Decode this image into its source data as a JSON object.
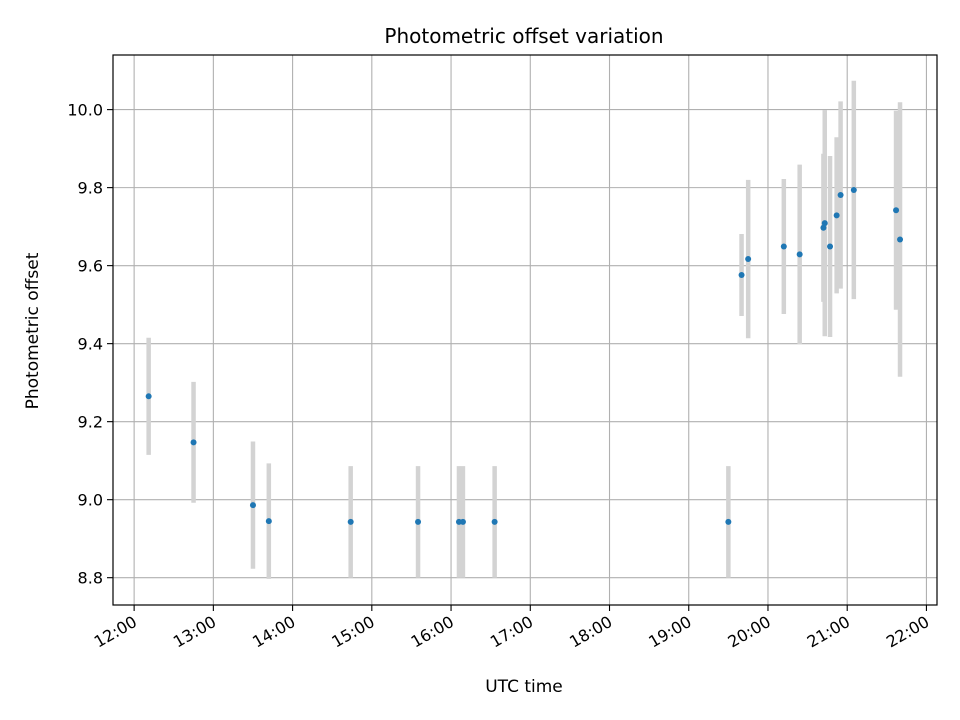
{
  "chart_data": {
    "type": "scatter",
    "title": "Photometric offset variation",
    "xlabel": "UTC time",
    "ylabel": "Photometric offset",
    "xlim": [
      "11:44",
      "22:08"
    ],
    "ylim": [
      8.73,
      10.14
    ],
    "x_ticks": [
      "12:00",
      "13:00",
      "14:00",
      "15:00",
      "16:00",
      "17:00",
      "18:00",
      "19:00",
      "20:00",
      "21:00",
      "22:00"
    ],
    "y_ticks": [
      "8.8",
      "9.0",
      "9.2",
      "9.4",
      "9.6",
      "9.8",
      "10.0"
    ],
    "grid": true,
    "series": [
      {
        "marker_color": "#1f77b4",
        "errorbar_color": "#d3d3d3",
        "points": [
          {
            "x": "12:11",
            "y": 9.265,
            "err": 0.15
          },
          {
            "x": "12:45",
            "y": 9.147,
            "err": 0.155
          },
          {
            "x": "13:30",
            "y": 8.986,
            "err": 0.163
          },
          {
            "x": "13:42",
            "y": 8.945,
            "err": 0.148
          },
          {
            "x": "14:44",
            "y": 8.943,
            "err": 0.143
          },
          {
            "x": "15:35",
            "y": 8.943,
            "err": 0.143
          },
          {
            "x": "16:06",
            "y": 8.943,
            "err": 0.143
          },
          {
            "x": "16:09",
            "y": 8.943,
            "err": 0.143
          },
          {
            "x": "16:33",
            "y": 8.943,
            "err": 0.143
          },
          {
            "x": "19:30",
            "y": 8.943,
            "err": 0.143
          },
          {
            "x": "19:40",
            "y": 9.576,
            "err": 0.105
          },
          {
            "x": "19:45",
            "y": 9.617,
            "err": 0.203
          },
          {
            "x": "20:12",
            "y": 9.649,
            "err": 0.173
          },
          {
            "x": "20:24",
            "y": 9.629,
            "err": 0.23
          },
          {
            "x": "20:42",
            "y": 9.697,
            "err": 0.19
          },
          {
            "x": "20:43",
            "y": 9.709,
            "err": 0.29
          },
          {
            "x": "20:47",
            "y": 9.649,
            "err": 0.232
          },
          {
            "x": "20:52",
            "y": 9.729,
            "err": 0.2
          },
          {
            "x": "20:55",
            "y": 9.781,
            "err": 0.24
          },
          {
            "x": "21:05",
            "y": 9.794,
            "err": 0.28
          },
          {
            "x": "21:37",
            "y": 9.742,
            "err": 0.255
          },
          {
            "x": "21:40",
            "y": 9.667,
            "err": 0.352
          }
        ]
      }
    ]
  }
}
